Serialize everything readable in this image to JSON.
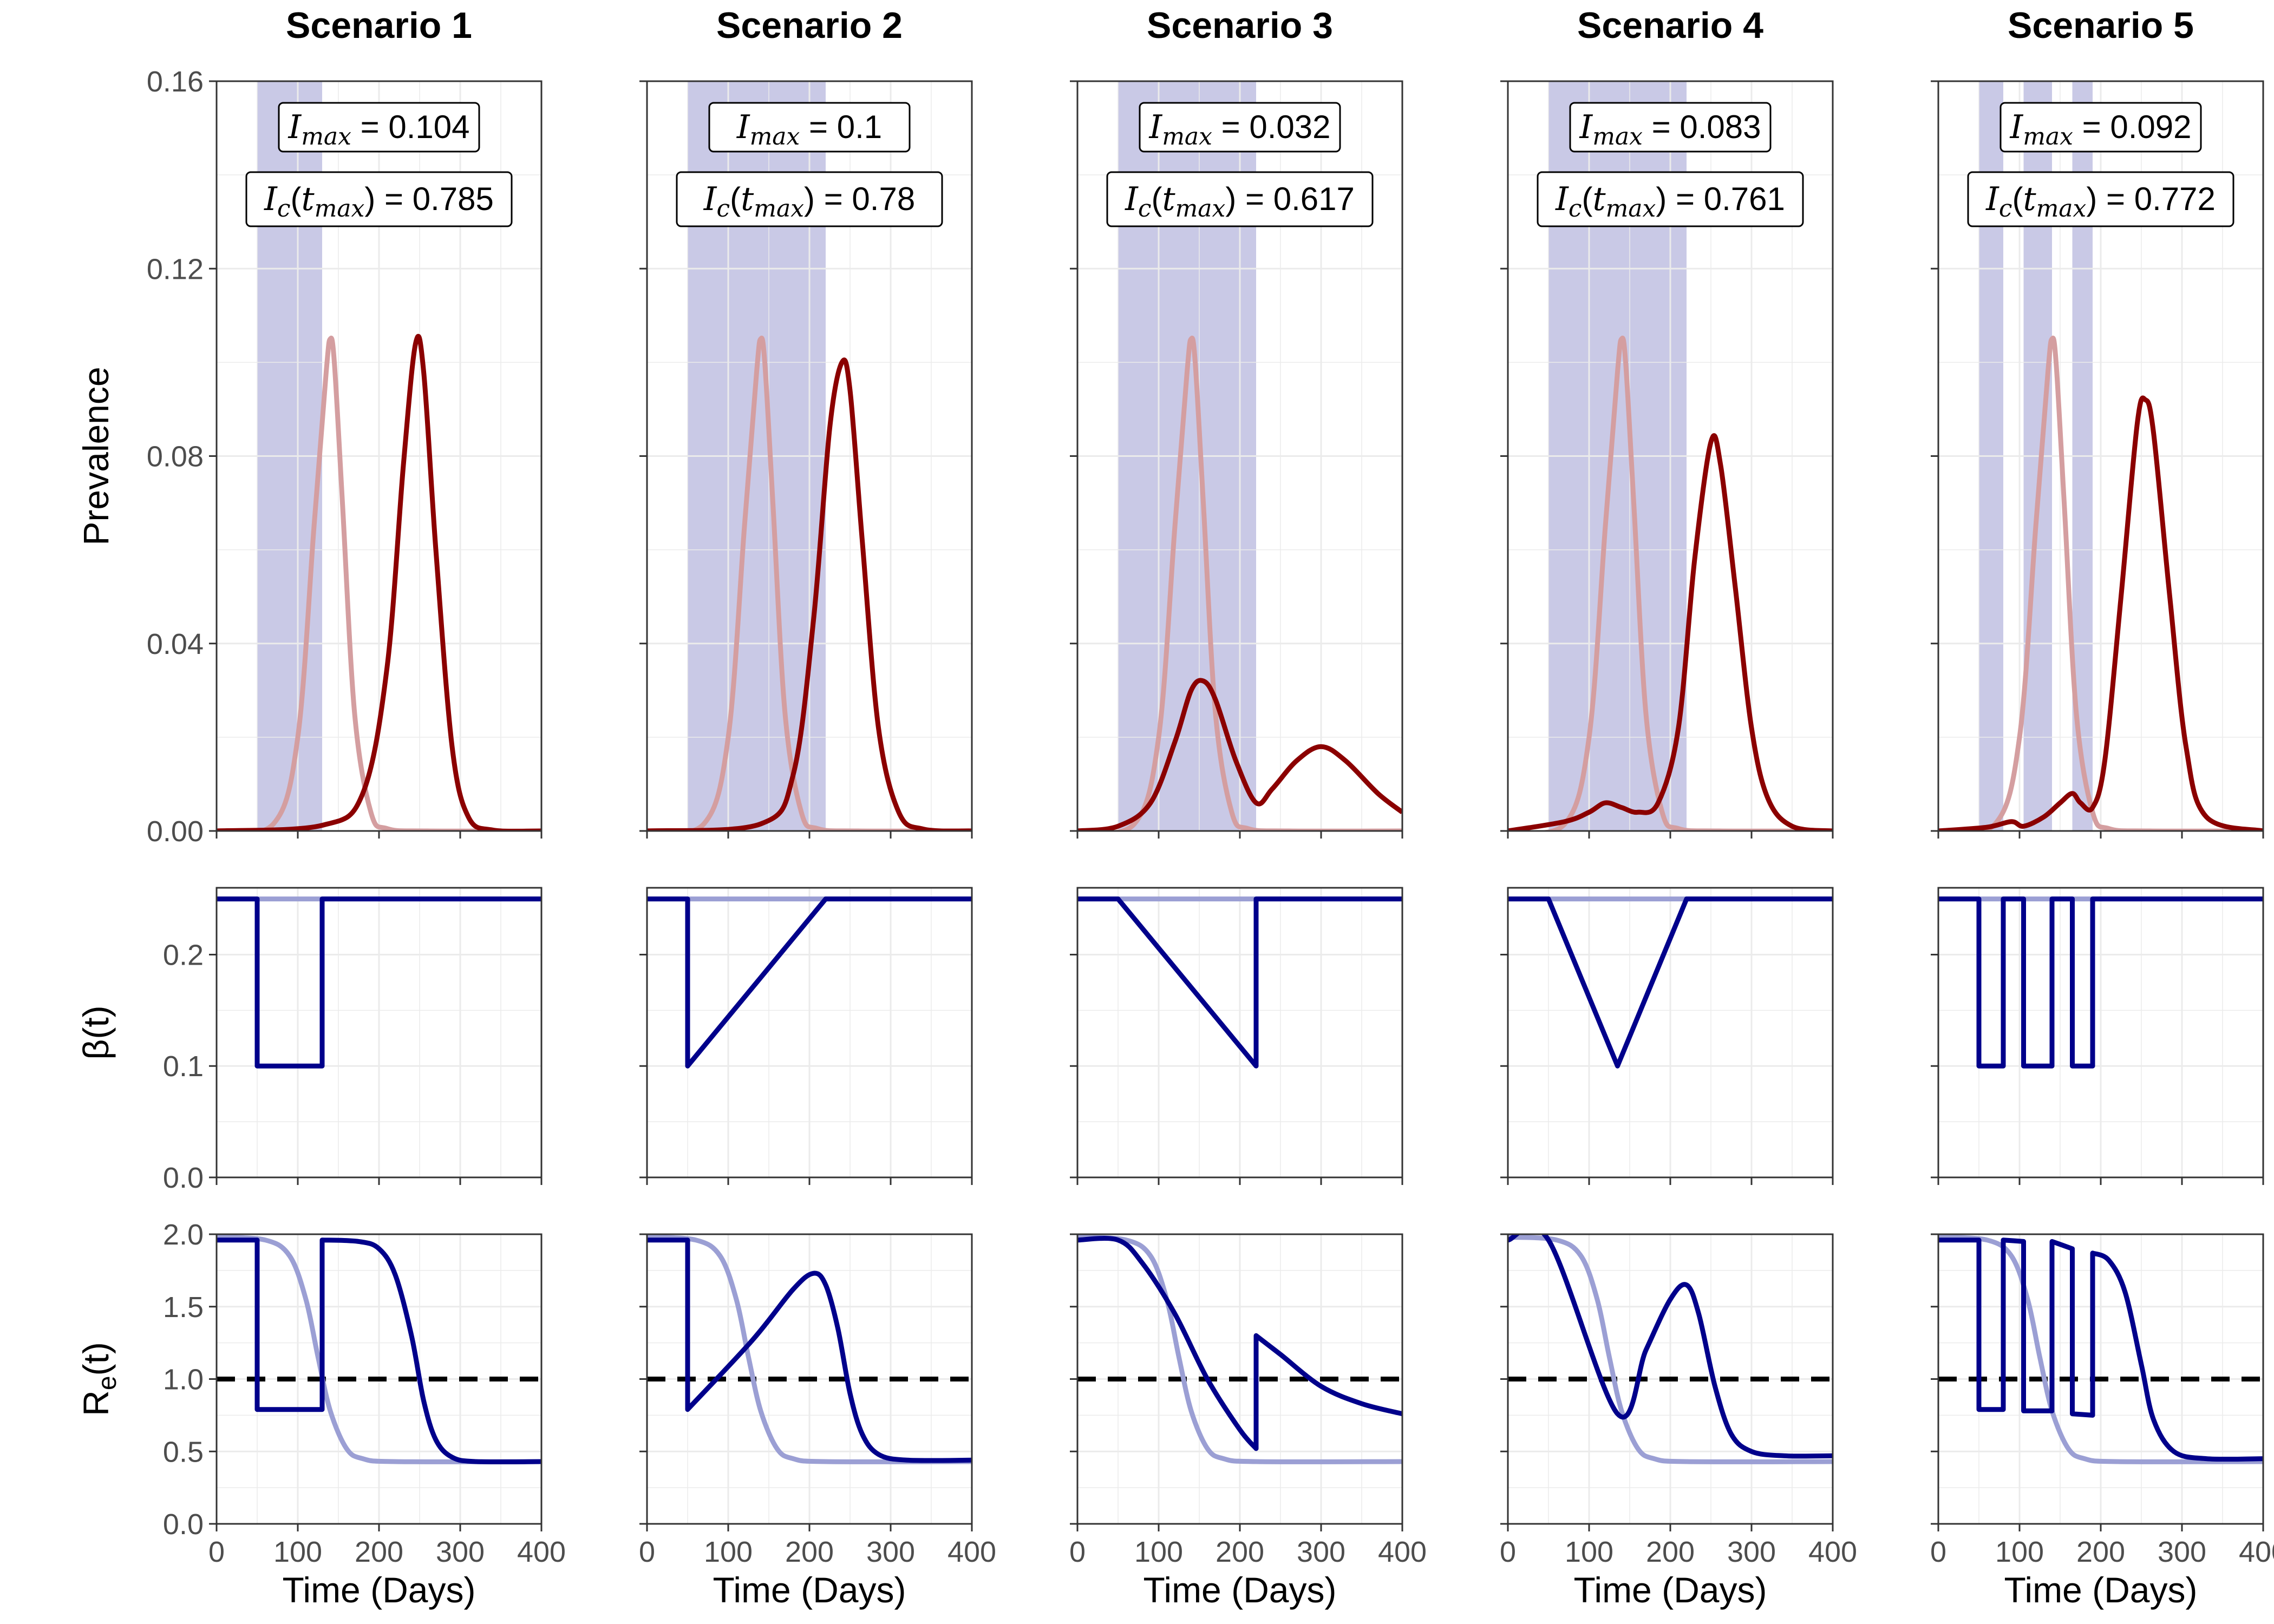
{
  "chart_data": {
    "type": "line",
    "layout": "3 rows x 5 columns of panels, one column per scenario",
    "colors": {
      "prevalence_scenario": "#8b0000",
      "prevalence_baseline": "#d49ea0",
      "transmission": "#00008b",
      "transmission_baseline": "#9b9fd4",
      "intervention_band": "#c9c9e6",
      "threshold_line": "#000000",
      "grid": "#ebebeb"
    },
    "scenarios": [
      {
        "title": "Scenario 1",
        "i_max": "0.104",
        "i_c_t_max": "0.785",
        "intervention_periods": [
          [
            50,
            130
          ]
        ]
      },
      {
        "title": "Scenario 2",
        "i_max": "0.1",
        "i_c_t_max": "0.78",
        "intervention_periods": [
          [
            50,
            220
          ]
        ]
      },
      {
        "title": "Scenario 3",
        "i_max": "0.032",
        "i_c_t_max": "0.617",
        "intervention_periods": [
          [
            50,
            220
          ]
        ]
      },
      {
        "title": "Scenario 4",
        "i_max": "0.083",
        "i_c_t_max": "0.761",
        "intervention_periods": [
          [
            50,
            220
          ]
        ]
      },
      {
        "title": "Scenario 5",
        "i_max": "0.092",
        "i_c_t_max": "0.772",
        "intervention_periods": [
          [
            50,
            80
          ],
          [
            105,
            140
          ],
          [
            165,
            190
          ]
        ]
      }
    ],
    "annotation_symbols": {
      "i_max": "I",
      "i_max_sub": "max",
      "i_c": "I",
      "i_c_sub": "c",
      "t": "t",
      "t_sub": "max"
    },
    "rows": [
      {
        "id": "prevalence",
        "ylabel": "Prevalence",
        "ylim": [
          0,
          0.16
        ],
        "yticks": [
          "0.00",
          "0.04",
          "0.08",
          "0.12",
          "0.16"
        ],
        "show_annotations": true
      },
      {
        "id": "beta",
        "ylabel": "β(t)",
        "ylim": [
          0,
          0.26
        ],
        "yticks": [
          "0.0",
          "0.1",
          "0.2"
        ],
        "show_annotations": false
      },
      {
        "id": "re",
        "ylabel": "R",
        "ylabel_sub": "e",
        "ylabel_suffix": "(t)",
        "ylim": [
          0,
          2.0
        ],
        "yticks": [
          "0.0",
          "0.5",
          "1.0",
          "1.5",
          "2.0"
        ],
        "threshold": 1.0,
        "show_annotations": false
      }
    ],
    "x": {
      "xlabel": "Time (Days)",
      "xlim": [
        0,
        400
      ],
      "xticks": [
        "0",
        "100",
        "200",
        "300",
        "400"
      ]
    },
    "series": {
      "prevalence_baseline": [
        [
          0,
          0
        ],
        [
          70,
          0.0015
        ],
        [
          100,
          0.02
        ],
        [
          120,
          0.065
        ],
        [
          135,
          0.098
        ],
        [
          140,
          0.105
        ],
        [
          145,
          0.1
        ],
        [
          155,
          0.07
        ],
        [
          170,
          0.025
        ],
        [
          190,
          0.004
        ],
        [
          210,
          0.0005
        ],
        [
          260,
          0
        ],
        [
          400,
          0
        ]
      ],
      "beta_baseline": [
        [
          0,
          0.25
        ],
        [
          400,
          0.25
        ]
      ],
      "re_baseline": [
        [
          0,
          1.98
        ],
        [
          60,
          1.96
        ],
        [
          90,
          1.85
        ],
        [
          110,
          1.55
        ],
        [
          125,
          1.15
        ],
        [
          140,
          0.78
        ],
        [
          160,
          0.52
        ],
        [
          180,
          0.45
        ],
        [
          220,
          0.43
        ],
        [
          400,
          0.43
        ]
      ],
      "prevalence": [
        [
          [
            0,
            0
          ],
          [
            130,
            0.0012
          ],
          [
            180,
            0.008
          ],
          [
            210,
            0.035
          ],
          [
            230,
            0.078
          ],
          [
            245,
            0.104
          ],
          [
            255,
            0.098
          ],
          [
            270,
            0.06
          ],
          [
            290,
            0.018
          ],
          [
            310,
            0.003
          ],
          [
            340,
            0.0002
          ],
          [
            400,
            0
          ]
        ],
        [
          [
            0,
            0
          ],
          [
            140,
            0.0015
          ],
          [
            180,
            0.012
          ],
          [
            205,
            0.045
          ],
          [
            225,
            0.086
          ],
          [
            240,
            0.1
          ],
          [
            250,
            0.094
          ],
          [
            265,
            0.062
          ],
          [
            285,
            0.022
          ],
          [
            310,
            0.004
          ],
          [
            340,
            0.0004
          ],
          [
            400,
            0
          ]
        ],
        [
          [
            0,
            0
          ],
          [
            50,
            0.001
          ],
          [
            90,
            0.006
          ],
          [
            120,
            0.019
          ],
          [
            140,
            0.03
          ],
          [
            155,
            0.032
          ],
          [
            170,
            0.028
          ],
          [
            195,
            0.015
          ],
          [
            220,
            0.006
          ],
          [
            240,
            0.009
          ],
          [
            270,
            0.015
          ],
          [
            300,
            0.018
          ],
          [
            330,
            0.015
          ],
          [
            370,
            0.008
          ],
          [
            400,
            0.004
          ]
        ],
        [
          [
            0,
            0
          ],
          [
            70,
            0.002
          ],
          [
            100,
            0.004
          ],
          [
            120,
            0.006
          ],
          [
            140,
            0.005
          ],
          [
            160,
            0.004
          ],
          [
            185,
            0.006
          ],
          [
            210,
            0.022
          ],
          [
            230,
            0.058
          ],
          [
            250,
            0.083
          ],
          [
            262,
            0.078
          ],
          [
            280,
            0.052
          ],
          [
            300,
            0.022
          ],
          [
            320,
            0.007
          ],
          [
            350,
            0.001
          ],
          [
            400,
            0
          ]
        ],
        [
          [
            0,
            0
          ],
          [
            60,
            0.0008
          ],
          [
            90,
            0.002
          ],
          [
            105,
            0.001
          ],
          [
            130,
            0.003
          ],
          [
            150,
            0.006
          ],
          [
            165,
            0.008
          ],
          [
            175,
            0.006
          ],
          [
            190,
            0.005
          ],
          [
            205,
            0.015
          ],
          [
            225,
            0.05
          ],
          [
            245,
            0.087
          ],
          [
            255,
            0.092
          ],
          [
            265,
            0.085
          ],
          [
            285,
            0.05
          ],
          [
            305,
            0.018
          ],
          [
            330,
            0.003
          ],
          [
            400,
            0
          ]
        ]
      ],
      "beta": [
        [
          [
            0,
            0.25
          ],
          [
            50,
            0.25
          ],
          [
            50,
            0.1
          ],
          [
            130,
            0.1
          ],
          [
            130,
            0.25
          ],
          [
            400,
            0.25
          ]
        ],
        [
          [
            0,
            0.25
          ],
          [
            50,
            0.25
          ],
          [
            50,
            0.1
          ],
          [
            220,
            0.25
          ],
          [
            400,
            0.25
          ]
        ],
        [
          [
            0,
            0.25
          ],
          [
            50,
            0.25
          ],
          [
            220,
            0.1
          ],
          [
            220,
            0.25
          ],
          [
            400,
            0.25
          ]
        ],
        [
          [
            0,
            0.25
          ],
          [
            50,
            0.25
          ],
          [
            135,
            0.1
          ],
          [
            220,
            0.25
          ],
          [
            400,
            0.25
          ]
        ],
        [
          [
            0,
            0.25
          ],
          [
            50,
            0.25
          ],
          [
            50,
            0.1
          ],
          [
            80,
            0.1
          ],
          [
            80,
            0.25
          ],
          [
            105,
            0.25
          ],
          [
            105,
            0.1
          ],
          [
            140,
            0.1
          ],
          [
            140,
            0.25
          ],
          [
            165,
            0.25
          ],
          [
            165,
            0.1
          ],
          [
            190,
            0.1
          ],
          [
            190,
            0.25
          ],
          [
            400,
            0.25
          ]
        ]
      ],
      "re": [
        [
          [
            0,
            1.96
          ],
          [
            50,
            1.96
          ],
          [
            50,
            0.79
          ],
          [
            130,
            0.79
          ],
          [
            130,
            1.96
          ],
          [
            175,
            1.95
          ],
          [
            200,
            1.9
          ],
          [
            220,
            1.72
          ],
          [
            240,
            1.3
          ],
          [
            255,
            0.85
          ],
          [
            270,
            0.58
          ],
          [
            290,
            0.46
          ],
          [
            320,
            0.43
          ],
          [
            400,
            0.43
          ]
        ],
        [
          [
            0,
            1.96
          ],
          [
            50,
            1.96
          ],
          [
            50,
            0.79
          ],
          [
            130,
            1.27
          ],
          [
            180,
            1.62
          ],
          [
            205,
            1.73
          ],
          [
            220,
            1.65
          ],
          [
            235,
            1.35
          ],
          [
            250,
            0.9
          ],
          [
            265,
            0.62
          ],
          [
            285,
            0.48
          ],
          [
            320,
            0.44
          ],
          [
            400,
            0.44
          ]
        ],
        [
          [
            0,
            1.96
          ],
          [
            50,
            1.96
          ],
          [
            80,
            1.8
          ],
          [
            120,
            1.45
          ],
          [
            160,
            1.0
          ],
          [
            200,
            0.65
          ],
          [
            220,
            0.52
          ],
          [
            220,
            1.3
          ],
          [
            250,
            1.17
          ],
          [
            300,
            0.95
          ],
          [
            350,
            0.83
          ],
          [
            400,
            0.76
          ]
        ],
        [
          [
            0,
            1.96
          ],
          [
            50,
            1.96
          ],
          [
            135,
            0.76
          ],
          [
            170,
            1.2
          ],
          [
            200,
            1.55
          ],
          [
            220,
            1.65
          ],
          [
            235,
            1.45
          ],
          [
            255,
            0.95
          ],
          [
            275,
            0.62
          ],
          [
            300,
            0.5
          ],
          [
            340,
            0.47
          ],
          [
            400,
            0.47
          ]
        ],
        [
          [
            0,
            1.96
          ],
          [
            50,
            1.96
          ],
          [
            50,
            0.79
          ],
          [
            80,
            0.79
          ],
          [
            80,
            1.96
          ],
          [
            105,
            1.95
          ],
          [
            105,
            0.78
          ],
          [
            140,
            0.78
          ],
          [
            140,
            1.95
          ],
          [
            165,
            1.9
          ],
          [
            165,
            0.76
          ],
          [
            190,
            0.75
          ],
          [
            190,
            1.87
          ],
          [
            210,
            1.82
          ],
          [
            230,
            1.6
          ],
          [
            250,
            1.1
          ],
          [
            265,
            0.72
          ],
          [
            290,
            0.5
          ],
          [
            330,
            0.45
          ],
          [
            400,
            0.45
          ]
        ]
      ]
    }
  }
}
